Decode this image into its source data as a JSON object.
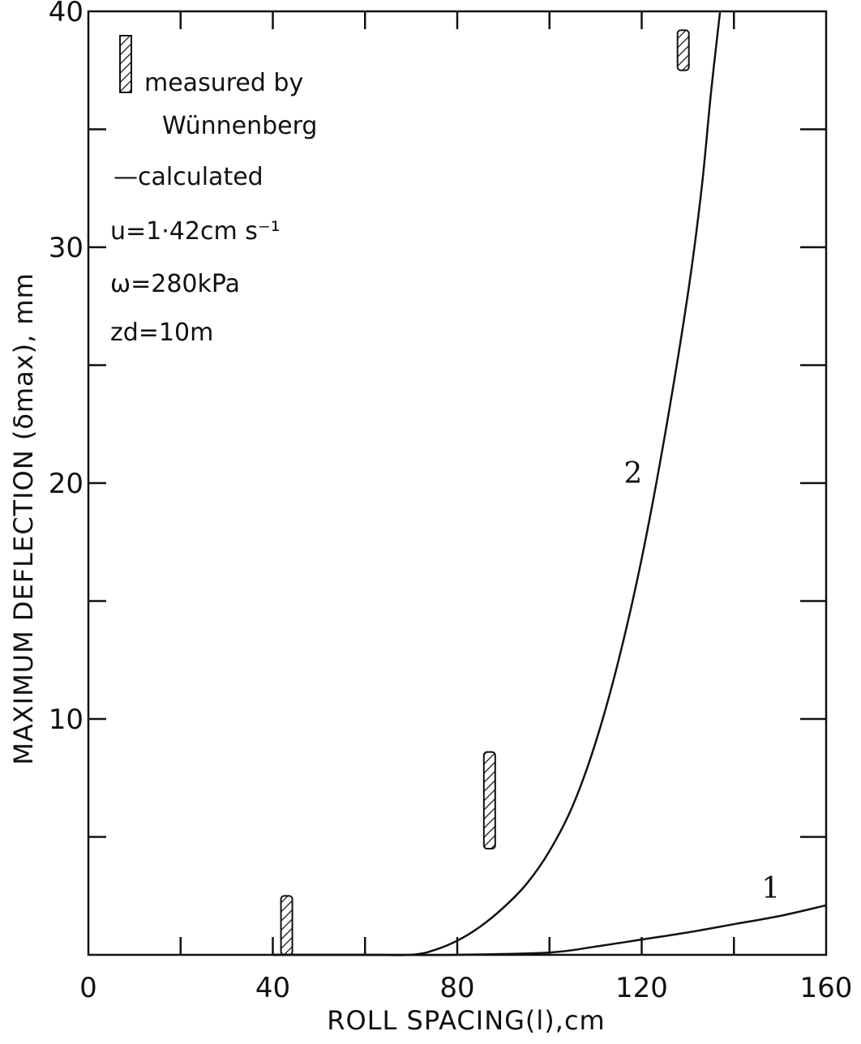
{
  "chart_data": {
    "type": "line",
    "xlabel": "ROLL SPACING(l),cm",
    "ylabel": "MAXIMUM DEFLECTION (δmax), mm",
    "xlim": [
      0,
      160
    ],
    "ylim": [
      0,
      40
    ],
    "x_ticks": [
      0,
      40,
      80,
      120,
      160
    ],
    "y_ticks": [
      10,
      20,
      30,
      40
    ],
    "x_minor_step": 20,
    "y_minor_step": 5,
    "grid": false,
    "legend": {
      "placement": "top-left",
      "measured_label_line1": "measured by",
      "measured_label_line2": "Wünnenberg",
      "calculated_label": "—calculated",
      "params": [
        "u=1·42cm s⁻¹",
        "ω=280kPa",
        "zd=10m"
      ]
    },
    "series": [
      {
        "name": "1",
        "x": [
          40,
          60,
          80,
          100,
          110,
          120,
          130,
          140,
          150,
          160
        ],
        "y": [
          0,
          0,
          0,
          0.1,
          0.35,
          0.65,
          0.95,
          1.3,
          1.65,
          2.1
        ]
      },
      {
        "name": "2",
        "x": [
          40,
          60,
          70,
          75,
          80,
          85,
          90,
          95,
          100,
          105,
          110,
          115,
          120,
          125,
          130,
          133,
          135,
          137
        ],
        "y": [
          0,
          0,
          0,
          0.2,
          0.6,
          1.2,
          2.0,
          3.0,
          4.4,
          6.3,
          9.0,
          12.5,
          16.8,
          22,
          28,
          32.5,
          36.5,
          40
        ]
      }
    ],
    "measured": [
      {
        "x": 43,
        "y_low": 0,
        "y_high": 2.5
      },
      {
        "x": 87,
        "y_low": 4.5,
        "y_high": 8.6
      },
      {
        "x": 129,
        "y_low": 37.5,
        "y_high": 39.2
      }
    ]
  }
}
